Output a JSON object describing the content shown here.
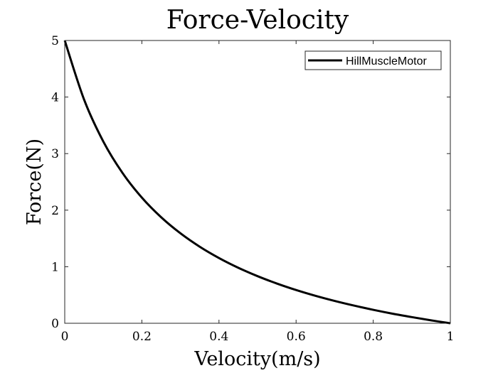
{
  "chart_data": {
    "type": "line",
    "title": "Force-Velocity",
    "xlabel": "Velocity(m/s)",
    "ylabel": "Force(N)",
    "xlim": [
      0,
      1
    ],
    "ylim": [
      0,
      5
    ],
    "xticks": [
      0,
      0.2,
      0.4,
      0.6,
      0.8,
      1
    ],
    "xtick_labels": [
      "0",
      "0.2",
      "0.4",
      "0.6",
      "0.8",
      "1"
    ],
    "yticks": [
      0,
      1,
      2,
      3,
      4,
      5
    ],
    "ytick_labels": [
      "0",
      "1",
      "2",
      "3",
      "4",
      "5"
    ],
    "grid": false,
    "legend": {
      "placement": "top-right",
      "entries": [
        "HillMuscleMotor"
      ]
    },
    "series": [
      {
        "name": "HillMuscleMotor",
        "color": "#000000",
        "x": [
          0,
          0.05,
          0.1,
          0.15,
          0.2,
          0.25,
          0.3,
          0.35,
          0.4,
          0.45,
          0.5,
          0.55,
          0.6,
          0.65,
          0.7,
          0.75,
          0.8,
          0.85,
          0.9,
          0.95,
          1
        ],
        "y": [
          5,
          3.958,
          3.214,
          2.656,
          2.222,
          1.875,
          1.591,
          1.354,
          1.154,
          0.982,
          0.833,
          0.703,
          0.588,
          0.486,
          0.395,
          0.313,
          0.238,
          0.17,
          0.109,
          0.052,
          0
        ]
      }
    ]
  }
}
